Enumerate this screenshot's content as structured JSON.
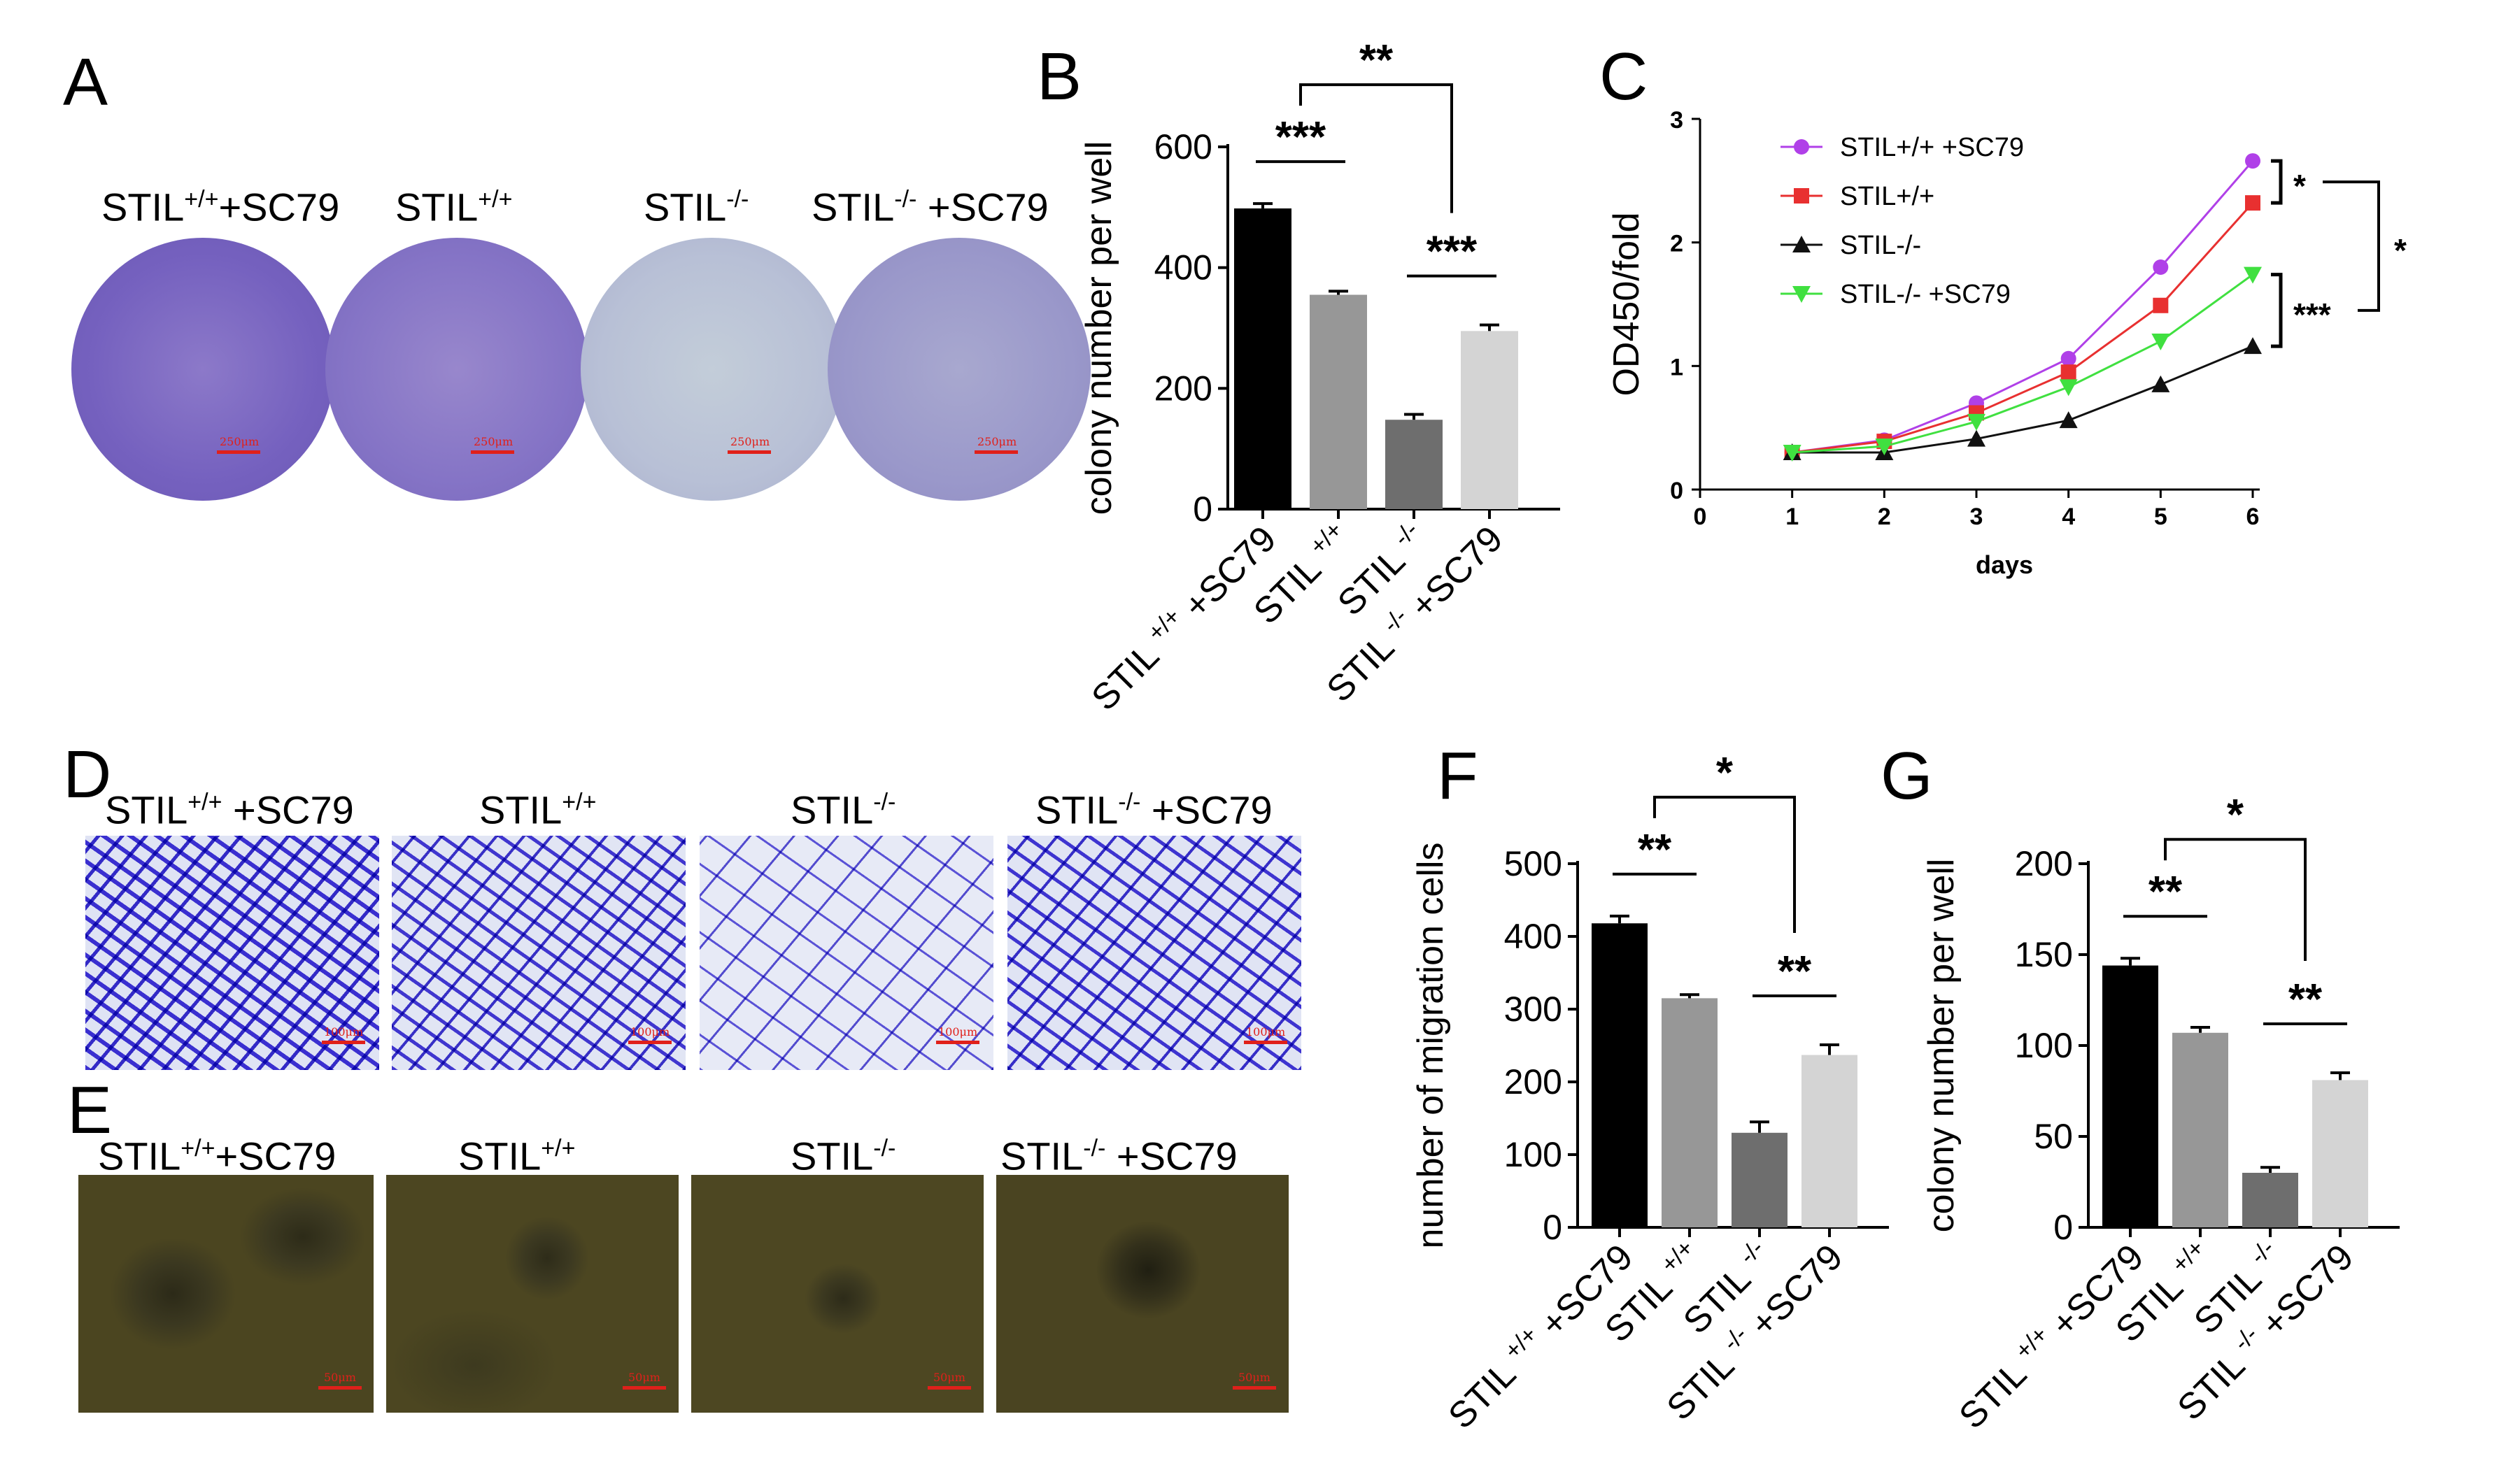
{
  "panel_labels": {
    "a": "A",
    "b": "B",
    "c": "C",
    "d": "D",
    "e": "E",
    "f": "F",
    "g": "G"
  },
  "groups": [
    {
      "base": "STIL",
      "sup": "+/+",
      "suffix": "+SC79"
    },
    {
      "base": "STIL",
      "sup": "+/+",
      "suffix": ""
    },
    {
      "base": "STIL",
      "sup": "-/-",
      "suffix": ""
    },
    {
      "base": "STIL",
      "sup": "-/-",
      "suffix": " +SC79"
    }
  ],
  "groups_d": [
    {
      "base": "STIL",
      "sup": "+/+",
      "suffix": " +SC79"
    },
    {
      "base": "STIL",
      "sup": "+/+",
      "suffix": ""
    },
    {
      "base": "STIL",
      "sup": "-/-",
      "suffix": ""
    },
    {
      "base": "STIL",
      "sup": "-/-",
      "suffix": " +SC79"
    }
  ],
  "scale_bars": {
    "a": "250μm",
    "d": "100μm",
    "e": "50μm"
  },
  "colors": {
    "dish_stain": "#7b5fc4",
    "dish_bg": "#c9d3dc",
    "transwell_bg": "#dde2f3",
    "transwell_cells": "#3a2fd0",
    "sphere_bg": "#4b4520",
    "scale_bar": "#e0201a",
    "bar_black": "#000000",
    "bar_dark": "#979797",
    "bar_mid": "#6e6e6e",
    "bar_light": "#d4d4d4"
  },
  "chart_data": [
    {
      "id": "B",
      "type": "bar",
      "categories": [
        "STIL +/+ +SC79",
        "STIL +/+",
        "STIL -/-",
        "STIL -/- +SC79"
      ],
      "tick_labels": [
        {
          "base": "STIL ",
          "sup": "+/+",
          "suffix": " +SC79"
        },
        {
          "base": "STIL ",
          "sup": "+/+",
          "suffix": ""
        },
        {
          "base": "STIL ",
          "sup": "-/-",
          "suffix": ""
        },
        {
          "base": "STIL ",
          "sup": "-/-",
          "suffix": " +SC79"
        }
      ],
      "values": [
        498,
        355,
        148,
        295
      ],
      "errors": [
        8,
        6,
        9,
        10
      ],
      "ylabel": "colony number per well",
      "ylim": [
        0,
        600
      ],
      "yticks": [
        0,
        200,
        400,
        600
      ],
      "significance": [
        {
          "from": 0,
          "to": 1,
          "label": "***"
        },
        {
          "from": 2,
          "to": 3,
          "label": "***"
        },
        {
          "from": 0,
          "to": 2,
          "label": "**"
        }
      ]
    },
    {
      "id": "C",
      "type": "line",
      "x": [
        1,
        2,
        3,
        4,
        5,
        6
      ],
      "xlabel": "days",
      "ylabel": "OD450/fold",
      "xlim": [
        0,
        6
      ],
      "ylim": [
        0,
        3
      ],
      "xticks": [
        0,
        1,
        2,
        3,
        4,
        5,
        6
      ],
      "yticks": [
        0,
        1,
        2,
        3
      ],
      "series": [
        {
          "name": "STIL+/+ +SC79",
          "color": "#b040e8",
          "marker": "circle",
          "values": [
            0.3,
            0.4,
            0.7,
            1.06,
            1.8,
            2.66
          ],
          "errors": [
            0.02,
            0.02,
            0.03,
            0.03,
            0.06,
            0.05
          ]
        },
        {
          "name": "STIL+/+",
          "color": "#e83030",
          "marker": "square",
          "values": [
            0.3,
            0.39,
            0.62,
            0.95,
            1.49,
            2.32
          ],
          "errors": [
            0.02,
            0.02,
            0.03,
            0.03,
            0.04,
            0.06
          ]
        },
        {
          "name": "STIL-/-",
          "color": "#111111",
          "marker": "triangle-up",
          "values": [
            0.3,
            0.3,
            0.41,
            0.56,
            0.85,
            1.16
          ],
          "errors": [
            0.01,
            0.01,
            0.02,
            0.02,
            0.03,
            0.03
          ]
        },
        {
          "name": "STIL-/- +SC79",
          "color": "#40e040",
          "marker": "triangle-down",
          "values": [
            0.3,
            0.35,
            0.55,
            0.83,
            1.2,
            1.74
          ],
          "errors": [
            0.02,
            0.02,
            0.02,
            0.03,
            0.03,
            0.05
          ]
        }
      ],
      "significance": [
        {
          "pair": [
            0,
            1
          ],
          "label": "*"
        },
        {
          "pair": [
            2,
            3
          ],
          "label": "***"
        },
        {
          "pair": [
            0,
            3
          ],
          "label": "*"
        }
      ]
    },
    {
      "id": "F",
      "type": "bar",
      "categories": [
        "STIL +/+ +SC79",
        "STIL +/+",
        "STIL -/-",
        "STIL -/- +SC79"
      ],
      "tick_labels": [
        {
          "base": "STIL ",
          "sup": "+/+",
          "suffix": " +SC79"
        },
        {
          "base": "STIL ",
          "sup": "+/+",
          "suffix": ""
        },
        {
          "base": "STIL ",
          "sup": "-/-",
          "suffix": ""
        },
        {
          "base": "STIL ",
          "sup": "-/-",
          "suffix": " +SC79"
        }
      ],
      "values": [
        418,
        315,
        130,
        237
      ],
      "errors": [
        10,
        5,
        15,
        14
      ],
      "ylabel": "number of migration cells",
      "ylim": [
        0,
        500
      ],
      "yticks": [
        0,
        100,
        200,
        300,
        400,
        500
      ],
      "significance": [
        {
          "from": 0,
          "to": 1,
          "label": "**"
        },
        {
          "from": 2,
          "to": 3,
          "label": "**"
        },
        {
          "from": 0,
          "to": 2,
          "label": "*"
        }
      ]
    },
    {
      "id": "G",
      "type": "bar",
      "categories": [
        "STIL +/+ +SC79",
        "STIL +/+",
        "STIL -/-",
        "STIL -/- +SC79"
      ],
      "tick_labels": [
        {
          "base": "STIL ",
          "sup": "+/+",
          "suffix": " +SC79"
        },
        {
          "base": "STIL ",
          "sup": "+/+",
          "suffix": ""
        },
        {
          "base": "STIL ",
          "sup": "-/-",
          "suffix": ""
        },
        {
          "base": "STIL ",
          "sup": "-/-",
          "suffix": " +SC79"
        }
      ],
      "values": [
        144,
        107,
        30,
        81
      ],
      "errors": [
        4,
        3,
        3,
        4
      ],
      "ylabel": "colony number per well",
      "ylim": [
        0,
        200
      ],
      "yticks": [
        0,
        50,
        100,
        150,
        200
      ],
      "significance": [
        {
          "from": 0,
          "to": 1,
          "label": "**"
        },
        {
          "from": 2,
          "to": 3,
          "label": "**"
        },
        {
          "from": 0,
          "to": 2,
          "label": "*"
        }
      ]
    }
  ]
}
